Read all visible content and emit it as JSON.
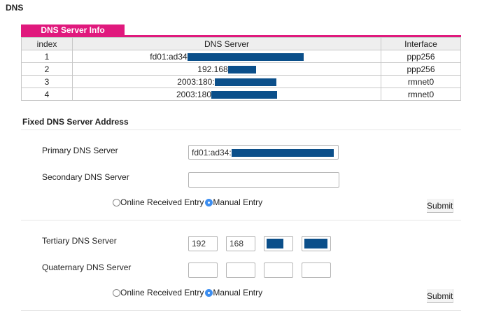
{
  "page_title": "DNS",
  "server_info": {
    "tab_label": "DNS Server Info",
    "headers": {
      "index": "index",
      "server": "DNS Server",
      "interface": "Interface"
    },
    "rows": [
      {
        "index": "1",
        "server": "fd01:ad34",
        "interface": "ppp256"
      },
      {
        "index": "2",
        "server": "192.168",
        "interface": "ppp256"
      },
      {
        "index": "3",
        "server": "2003:180:",
        "interface": "rmnet0"
      },
      {
        "index": "4",
        "server": "2003:180",
        "interface": "rmnet0"
      }
    ]
  },
  "fixed": {
    "title": "Fixed DNS Server Address",
    "primary_label": "Primary DNS Server",
    "primary_value": "fd01:ad34:",
    "secondary_label": "Secondary DNS Server",
    "secondary_value": "",
    "radio_online": "Online Received Entry",
    "radio_manual": "Manual Entry",
    "submit": "Submit"
  },
  "ipv4": {
    "tertiary_label": "Tertiary DNS Server",
    "tertiary_octets": [
      "192",
      "168",
      "",
      ""
    ],
    "quaternary_label": "Quaternary DNS Server",
    "quaternary_octets": [
      "",
      "",
      "",
      ""
    ],
    "radio_online": "Online Received Entry",
    "radio_manual": "Manual Entry",
    "submit": "Submit"
  },
  "colors": {
    "accent": "#e0197d",
    "redaction": "#0b4f8a",
    "radio_selected": "#3d8ef0"
  }
}
